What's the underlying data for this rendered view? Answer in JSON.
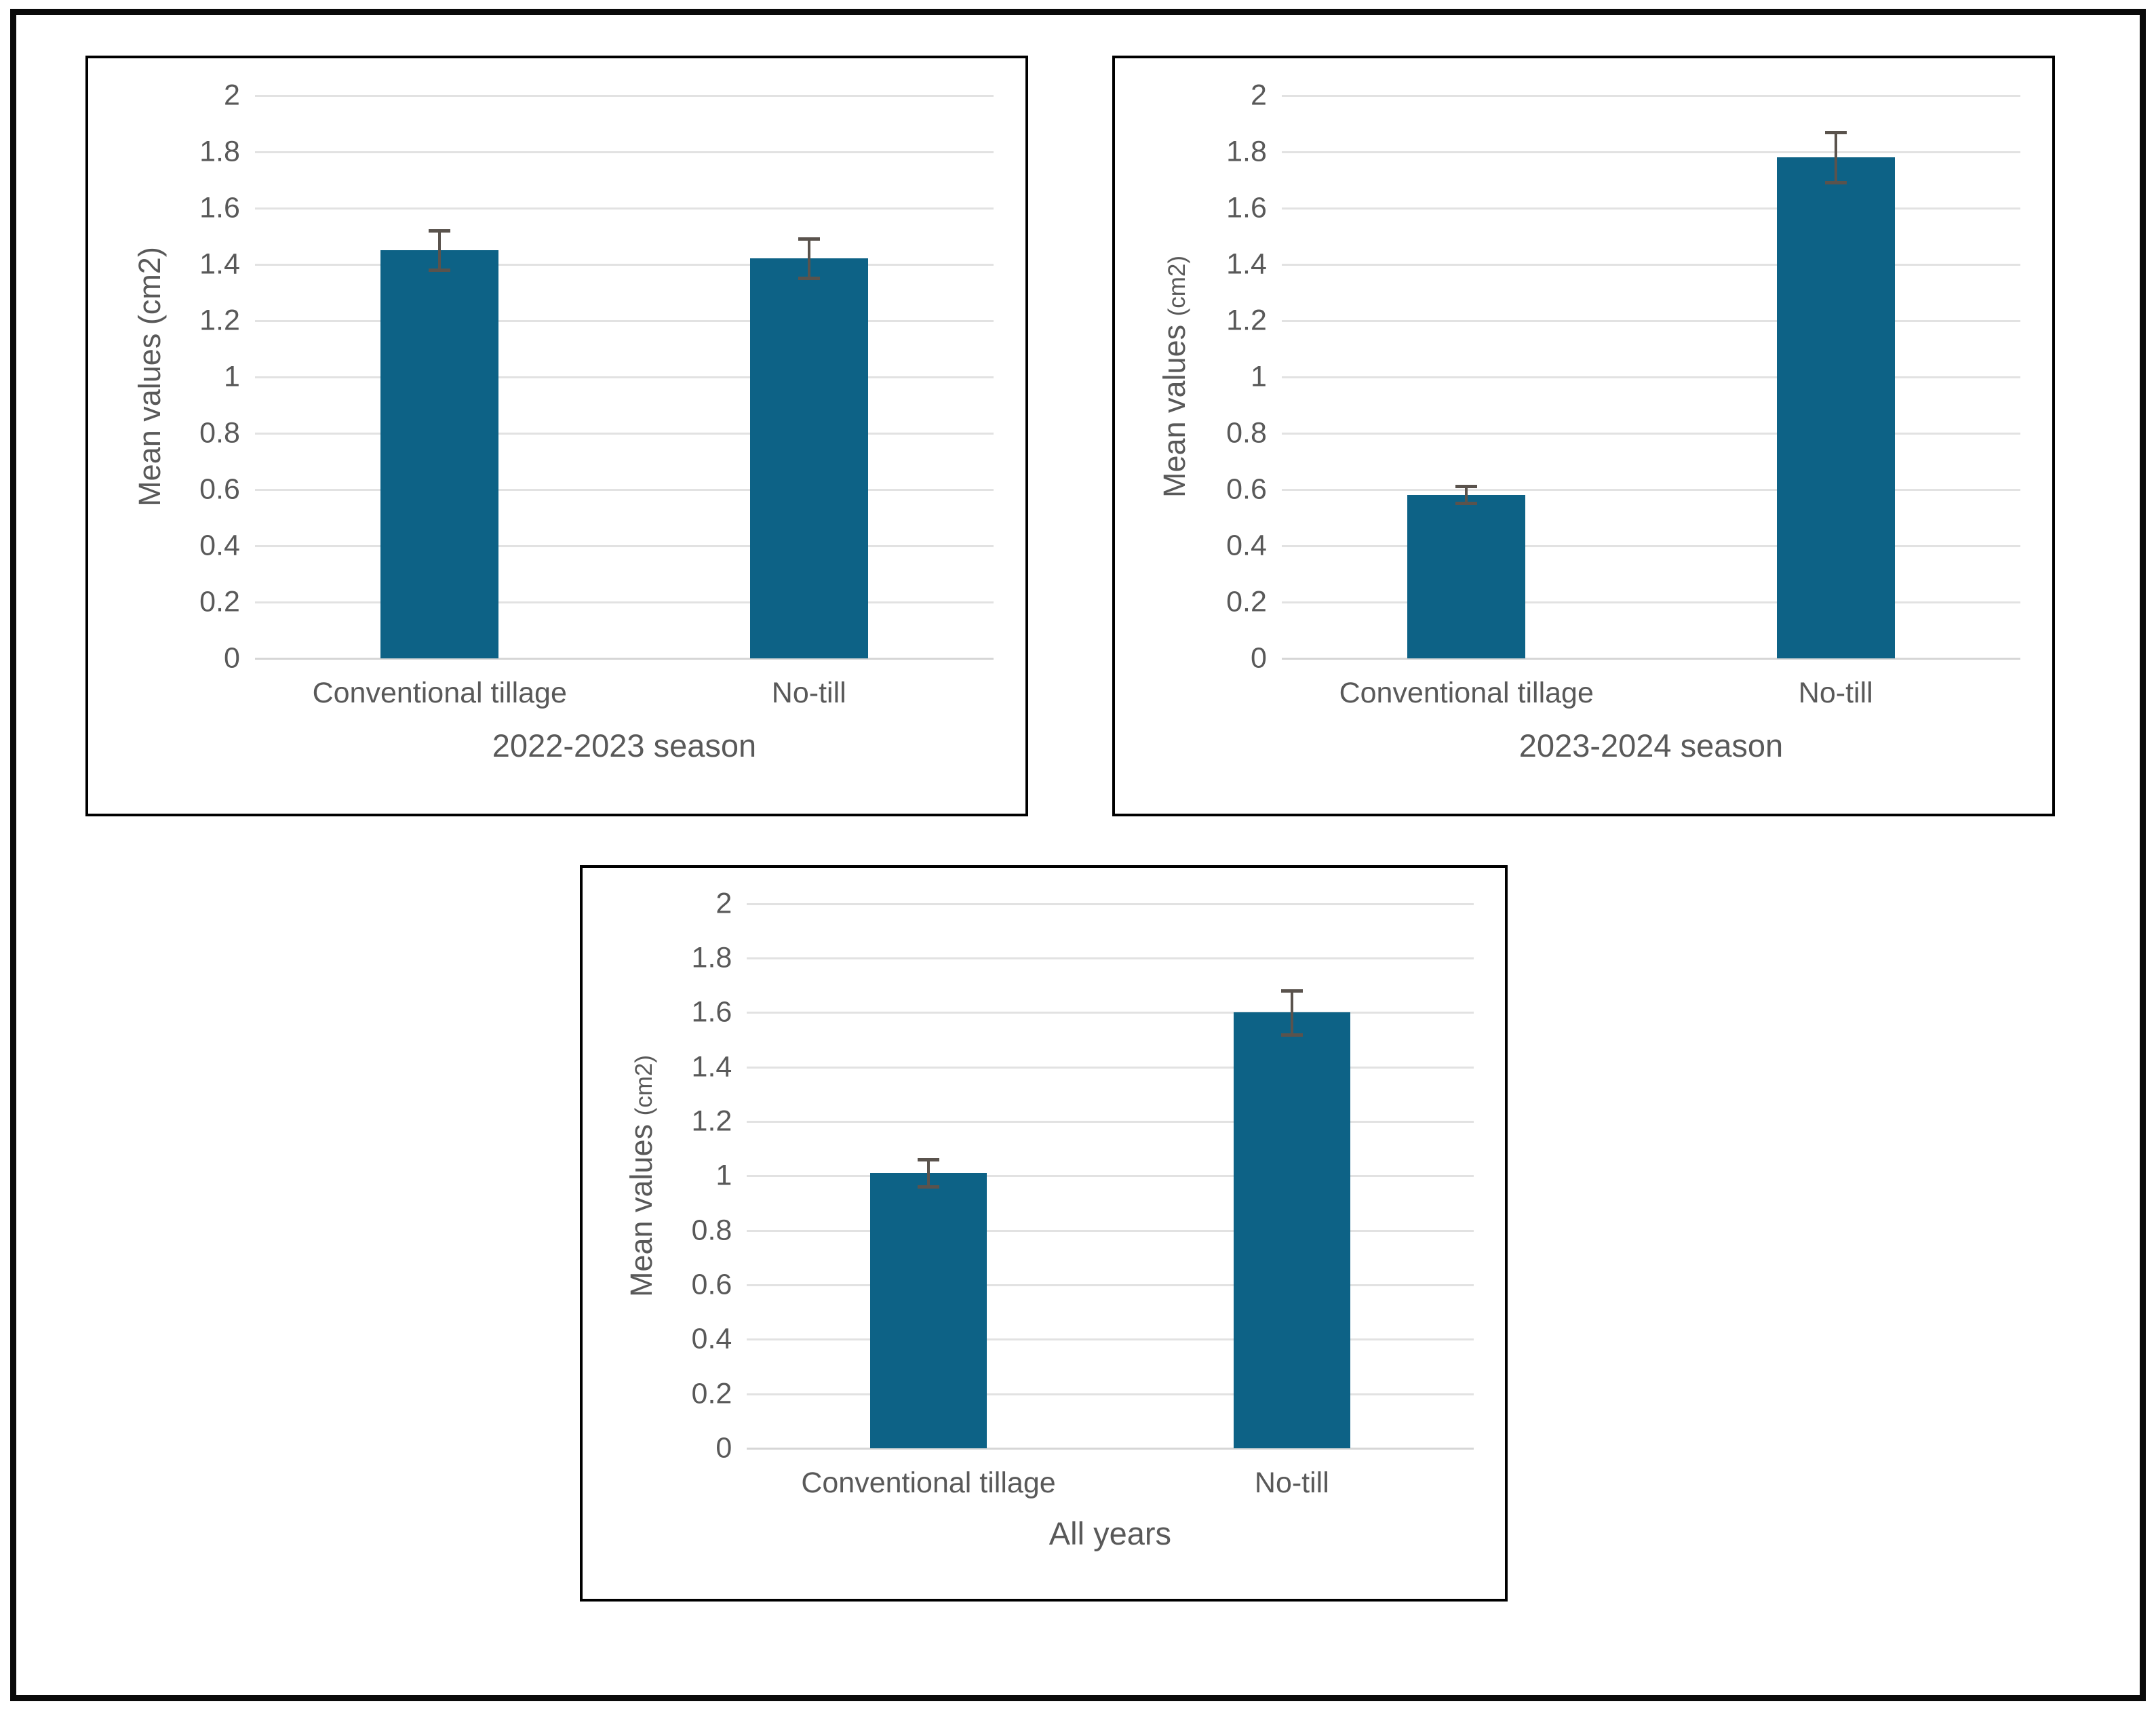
{
  "figure": {
    "description": "Three-panel bar chart figure comparing tillage treatments",
    "colors": {
      "bar": "#0d6286",
      "error_bar": "#5a534d",
      "gridline": "#e2e2e2",
      "zero_line": "#d6d6d6",
      "text": "#595959",
      "panel_border": "#000000",
      "outer_border": "#0a0a0a",
      "background": "#ffffff"
    }
  },
  "chart_data": [
    {
      "type": "bar",
      "panel": "top-left",
      "title": "2022-2023 season",
      "xlabel": "2022-2023 season",
      "ylabel": "Mean values (cm2)",
      "ylabel_main": "Mean values ",
      "ylabel_unit": "(cm2)",
      "ylabel_unit_small": false,
      "categories": [
        "Conventional tillage",
        "No-till"
      ],
      "values": [
        1.45,
        1.42
      ],
      "errors": [
        0.07,
        0.07
      ],
      "ylim": [
        0,
        2
      ],
      "ytick_values": [
        2,
        1.8,
        1.6,
        1.4,
        1.2,
        1,
        0.8,
        0.6,
        0.4,
        0.2,
        0
      ],
      "ytick_labels": [
        "2",
        "1.8",
        "1.6",
        "1.4",
        "1.2",
        "1",
        "0.8",
        "0.6",
        "0.4",
        "0.2",
        "0"
      ],
      "grid": true,
      "legend": false
    },
    {
      "type": "bar",
      "panel": "top-right",
      "title": "2023-2024 season",
      "xlabel": "2023-2024 season",
      "ylabel": "Mean values (cm2)",
      "ylabel_main": "Mean values ",
      "ylabel_unit": "(cm2)",
      "ylabel_unit_small": true,
      "categories": [
        "Conventional tillage",
        "No-till"
      ],
      "values": [
        0.58,
        1.78
      ],
      "errors": [
        0.03,
        0.09
      ],
      "ylim": [
        0,
        2
      ],
      "ytick_values": [
        2,
        1.8,
        1.6,
        1.4,
        1.2,
        1,
        0.8,
        0.6,
        0.4,
        0.2,
        0
      ],
      "ytick_labels": [
        "2",
        "1.8",
        "1.6",
        "1.4",
        "1.2",
        "1",
        "0.8",
        "0.6",
        "0.4",
        "0.2",
        "0"
      ],
      "grid": true,
      "legend": false
    },
    {
      "type": "bar",
      "panel": "bottom-center",
      "title": "All years",
      "xlabel": "All years",
      "ylabel": "Mean values (cm2)",
      "ylabel_main": "Mean values ",
      "ylabel_unit": "(cm2)",
      "ylabel_unit_small": true,
      "categories": [
        "Conventional tillage",
        "No-till"
      ],
      "values": [
        1.01,
        1.6
      ],
      "errors": [
        0.05,
        0.08
      ],
      "ylim": [
        0,
        2
      ],
      "ytick_values": [
        2,
        1.8,
        1.6,
        1.4,
        1.2,
        1,
        0.8,
        0.6,
        0.4,
        0.2,
        0
      ],
      "ytick_labels": [
        "2",
        "1.8",
        "1.6",
        "1.4",
        "1.2",
        "1",
        "0.8",
        "0.6",
        "0.4",
        "0.2",
        "0"
      ],
      "grid": true,
      "legend": false
    }
  ]
}
